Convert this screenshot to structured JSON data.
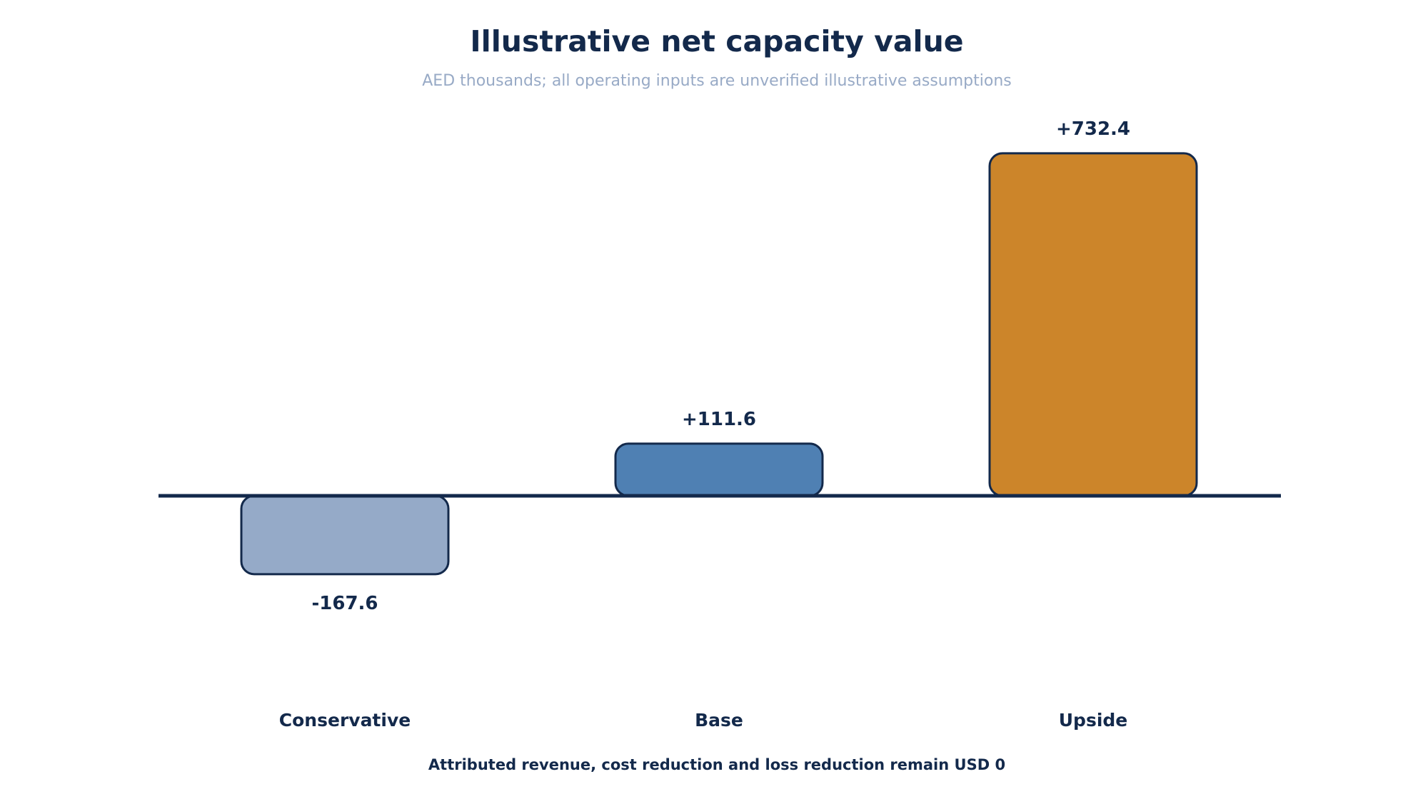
{
  "chart_data": {
    "type": "bar",
    "title": "Illustrative net capacity value",
    "subtitle": "AED thousands; all operating inputs are unverified illustrative assumptions",
    "footnote": "Attributed revenue, cost reduction and loss reduction remain USD 0",
    "categories": [
      "Conservative",
      "Base",
      "Upside"
    ],
    "values": [
      -167.6,
      111.6,
      732.4
    ],
    "value_labels": [
      "-167.6",
      "+111.6",
      "+732.4"
    ],
    "colors": [
      "#95aac8",
      "#4f80b3",
      "#cc852a"
    ],
    "edge_color": "#13294b",
    "ylim": [
      -400,
      800
    ],
    "grid": false,
    "legend": "none",
    "baseline": 0
  }
}
